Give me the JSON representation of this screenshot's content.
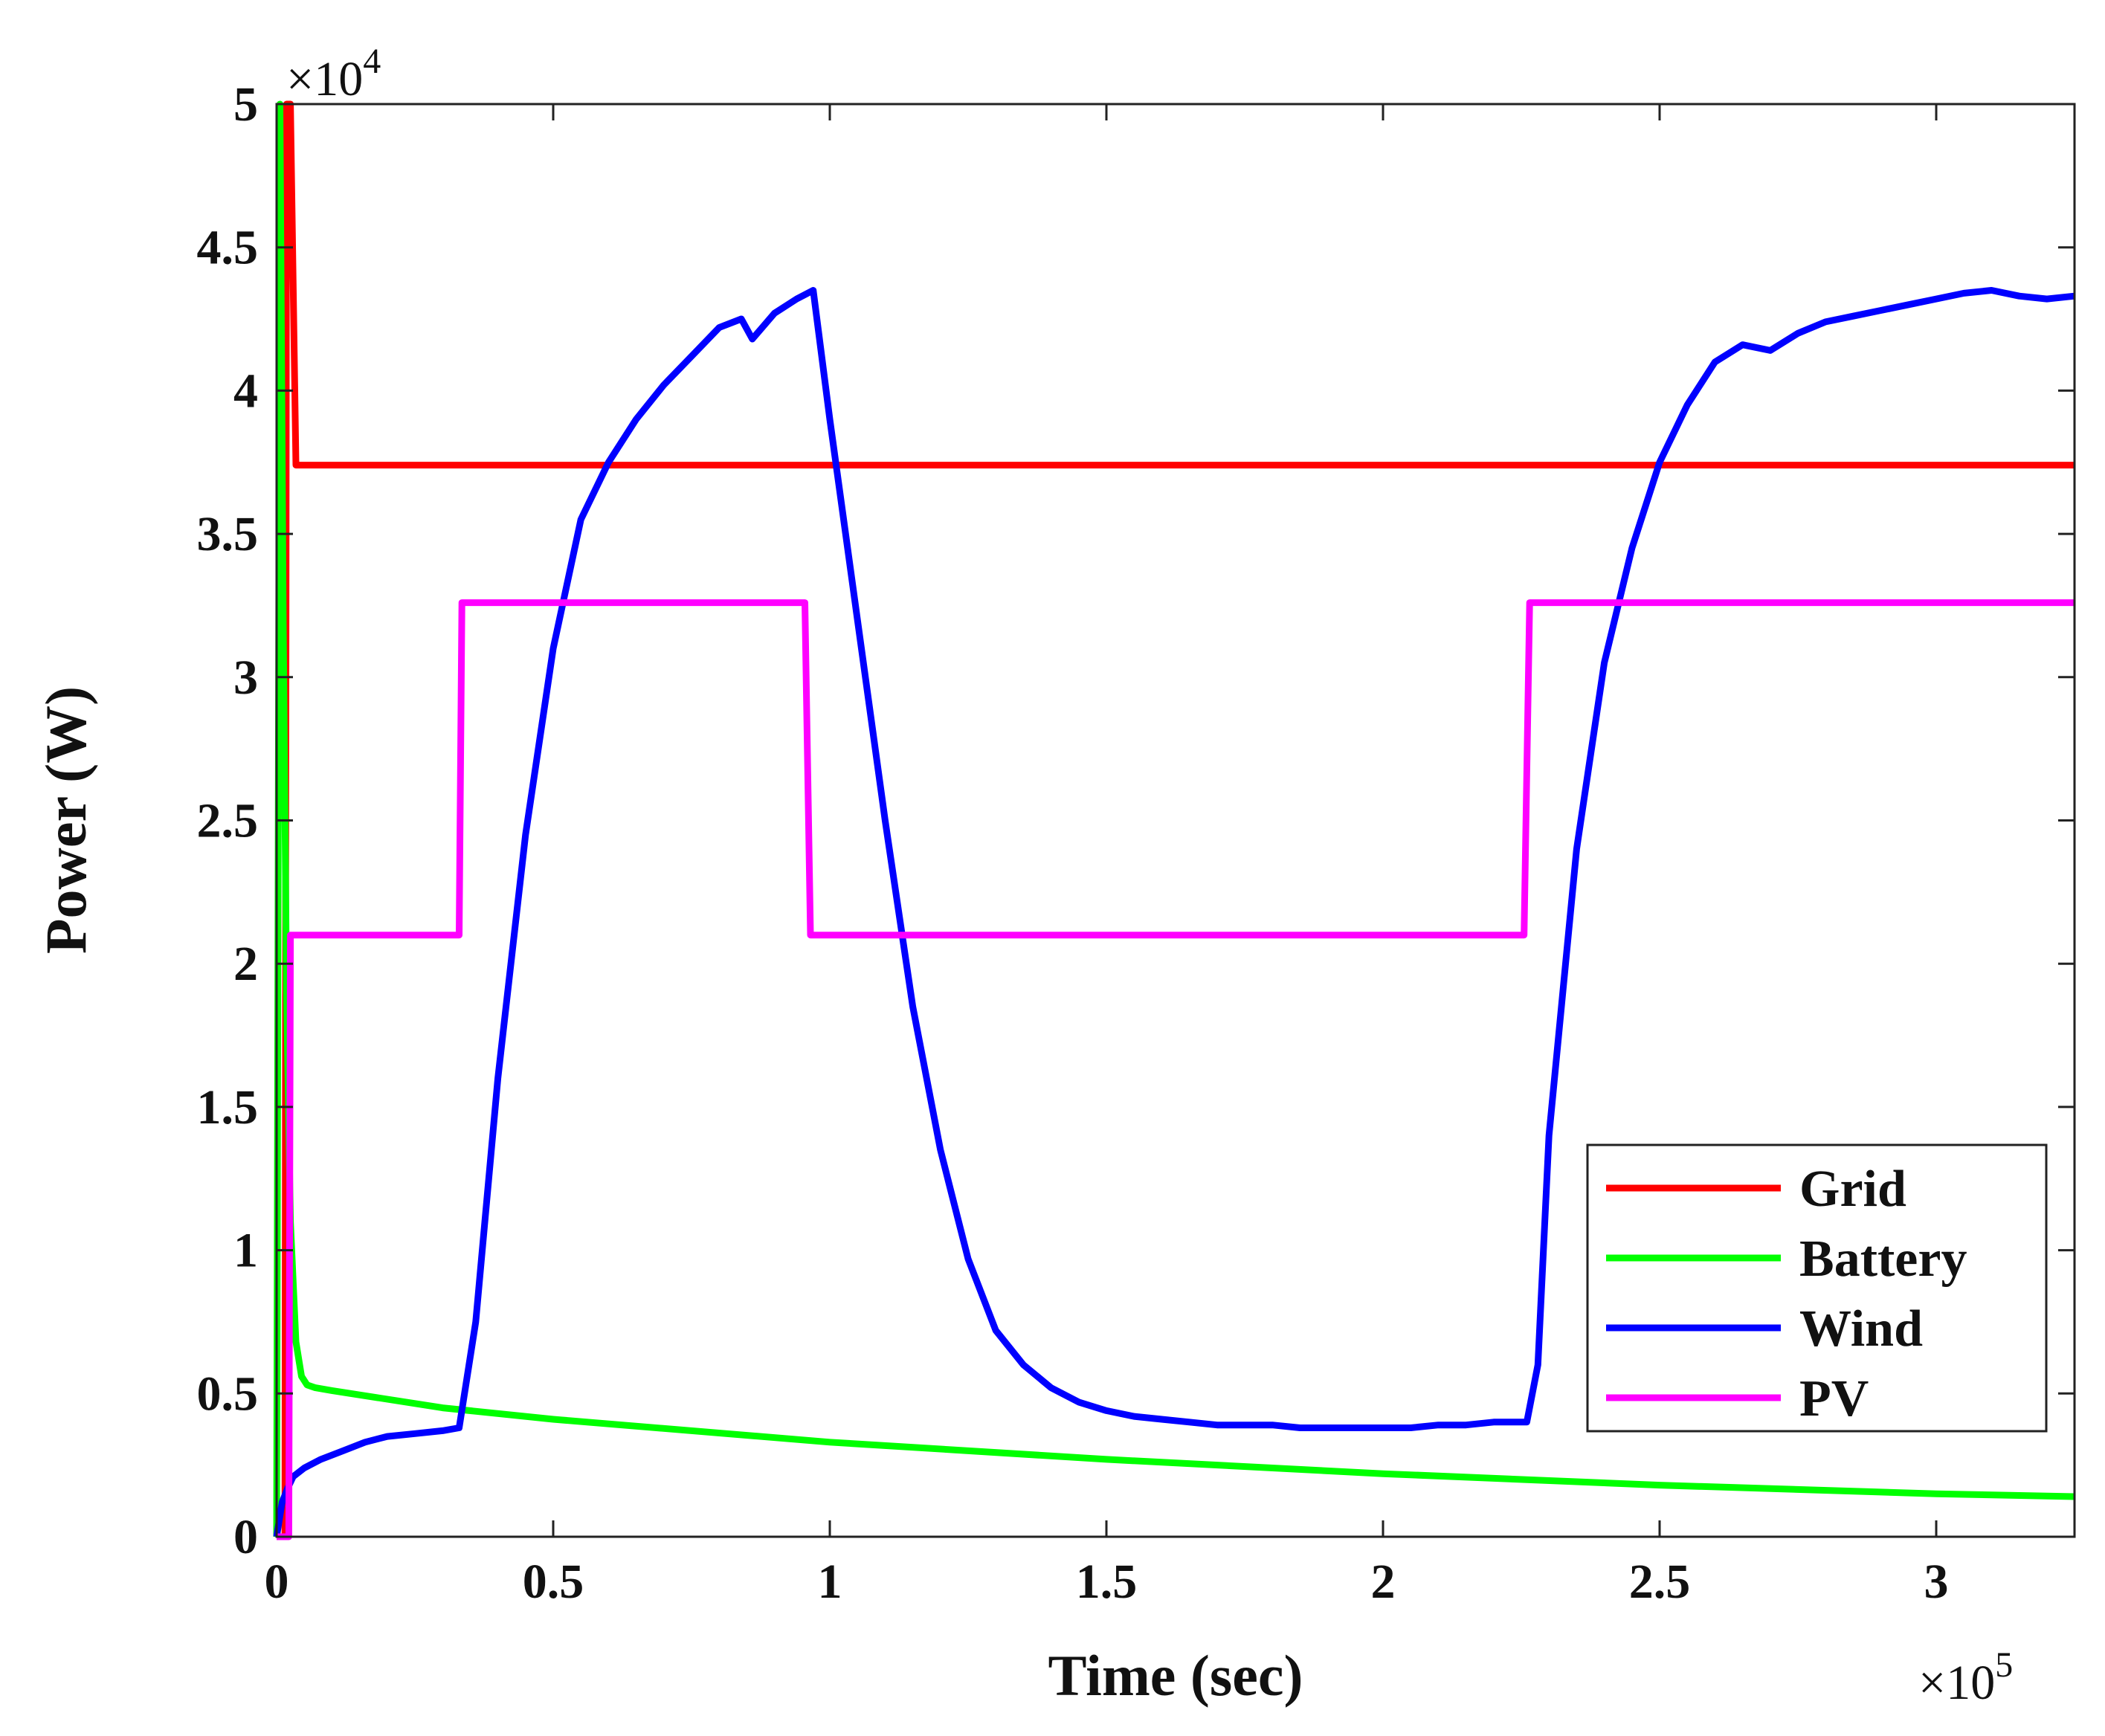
{
  "chart_data": {
    "type": "line",
    "title": "",
    "xlabel": "Time (sec)",
    "ylabel": "Power (W)",
    "x_multiplier": {
      "base": "×10",
      "exp": "5"
    },
    "y_multiplier": {
      "base": "×10",
      "exp": "4"
    },
    "xlim": [
      0,
      3.25
    ],
    "ylim": [
      0,
      5
    ],
    "x_ticks": [
      0,
      0.5,
      1,
      1.5,
      2,
      2.5,
      3
    ],
    "x_tick_labels": [
      "0",
      "0.5",
      "1",
      "1.5",
      "2",
      "2.5",
      "3"
    ],
    "y_ticks": [
      0,
      0.5,
      1,
      1.5,
      2,
      2.5,
      3,
      3.5,
      4,
      4.5,
      5
    ],
    "y_tick_labels": [
      "0",
      "0.5",
      "1",
      "1.5",
      "2",
      "2.5",
      "3",
      "3.5",
      "4",
      "4.5",
      "5"
    ],
    "grid": false,
    "legend_position": "bottom-right",
    "series": [
      {
        "name": "Grid",
        "color": "#ff0000",
        "x": [
          0,
          0.015,
          0.018,
          0.025,
          0.035,
          1.0,
          2.0,
          3.25
        ],
        "y": [
          0,
          0,
          5.0,
          5.0,
          3.74,
          3.74,
          3.74,
          3.74
        ]
      },
      {
        "name": "Battery",
        "color": "#00ff00",
        "x": [
          0,
          0.006,
          0.012,
          0.018,
          0.025,
          0.035,
          0.045,
          0.055,
          0.07,
          0.1,
          0.3,
          0.5,
          1.0,
          1.5,
          2.0,
          2.5,
          3.0,
          3.25
        ],
        "y": [
          0,
          5.0,
          3.2,
          1.9,
          1.1,
          0.68,
          0.56,
          0.53,
          0.52,
          0.51,
          0.45,
          0.41,
          0.33,
          0.27,
          0.22,
          0.18,
          0.15,
          0.14
        ]
      },
      {
        "name": "Wind",
        "color": "#0000ff",
        "x": [
          0,
          0.01,
          0.02,
          0.03,
          0.05,
          0.08,
          0.12,
          0.16,
          0.2,
          0.25,
          0.3,
          0.33,
          0.36,
          0.4,
          0.45,
          0.5,
          0.55,
          0.6,
          0.65,
          0.7,
          0.75,
          0.8,
          0.84,
          0.86,
          0.9,
          0.94,
          0.97,
          1.0,
          1.05,
          1.1,
          1.15,
          1.2,
          1.25,
          1.3,
          1.35,
          1.4,
          1.45,
          1.5,
          1.55,
          1.6,
          1.65,
          1.7,
          1.75,
          1.8,
          1.85,
          1.9,
          1.95,
          2.0,
          2.05,
          2.1,
          2.15,
          2.2,
          2.26,
          2.28,
          2.3,
          2.35,
          2.4,
          2.45,
          2.5,
          2.55,
          2.6,
          2.65,
          2.7,
          2.75,
          2.8,
          2.85,
          2.9,
          2.95,
          3.0,
          3.05,
          3.1,
          3.15,
          3.2,
          3.25
        ],
        "y": [
          0,
          0.12,
          0.17,
          0.21,
          0.24,
          0.27,
          0.3,
          0.33,
          0.35,
          0.36,
          0.37,
          0.38,
          0.75,
          1.6,
          2.45,
          3.1,
          3.55,
          3.75,
          3.9,
          4.02,
          4.12,
          4.22,
          4.25,
          4.18,
          4.27,
          4.32,
          4.35,
          3.9,
          3.2,
          2.5,
          1.85,
          1.35,
          0.97,
          0.72,
          0.6,
          0.52,
          0.47,
          0.44,
          0.42,
          0.41,
          0.4,
          0.39,
          0.39,
          0.39,
          0.38,
          0.38,
          0.38,
          0.38,
          0.38,
          0.39,
          0.39,
          0.4,
          0.4,
          0.6,
          1.4,
          2.4,
          3.05,
          3.45,
          3.75,
          3.95,
          4.1,
          4.16,
          4.14,
          4.2,
          4.24,
          4.26,
          4.28,
          4.3,
          4.32,
          4.34,
          4.35,
          4.33,
          4.32,
          4.33
        ]
      },
      {
        "name": "PV",
        "color": "#ff00ff",
        "x": [
          0,
          0.022,
          0.025,
          0.33,
          0.335,
          0.955,
          0.965,
          2.255,
          2.265,
          3.25
        ],
        "y": [
          0,
          0,
          2.1,
          2.1,
          3.26,
          3.26,
          2.1,
          2.1,
          3.26,
          3.26
        ]
      }
    ]
  }
}
